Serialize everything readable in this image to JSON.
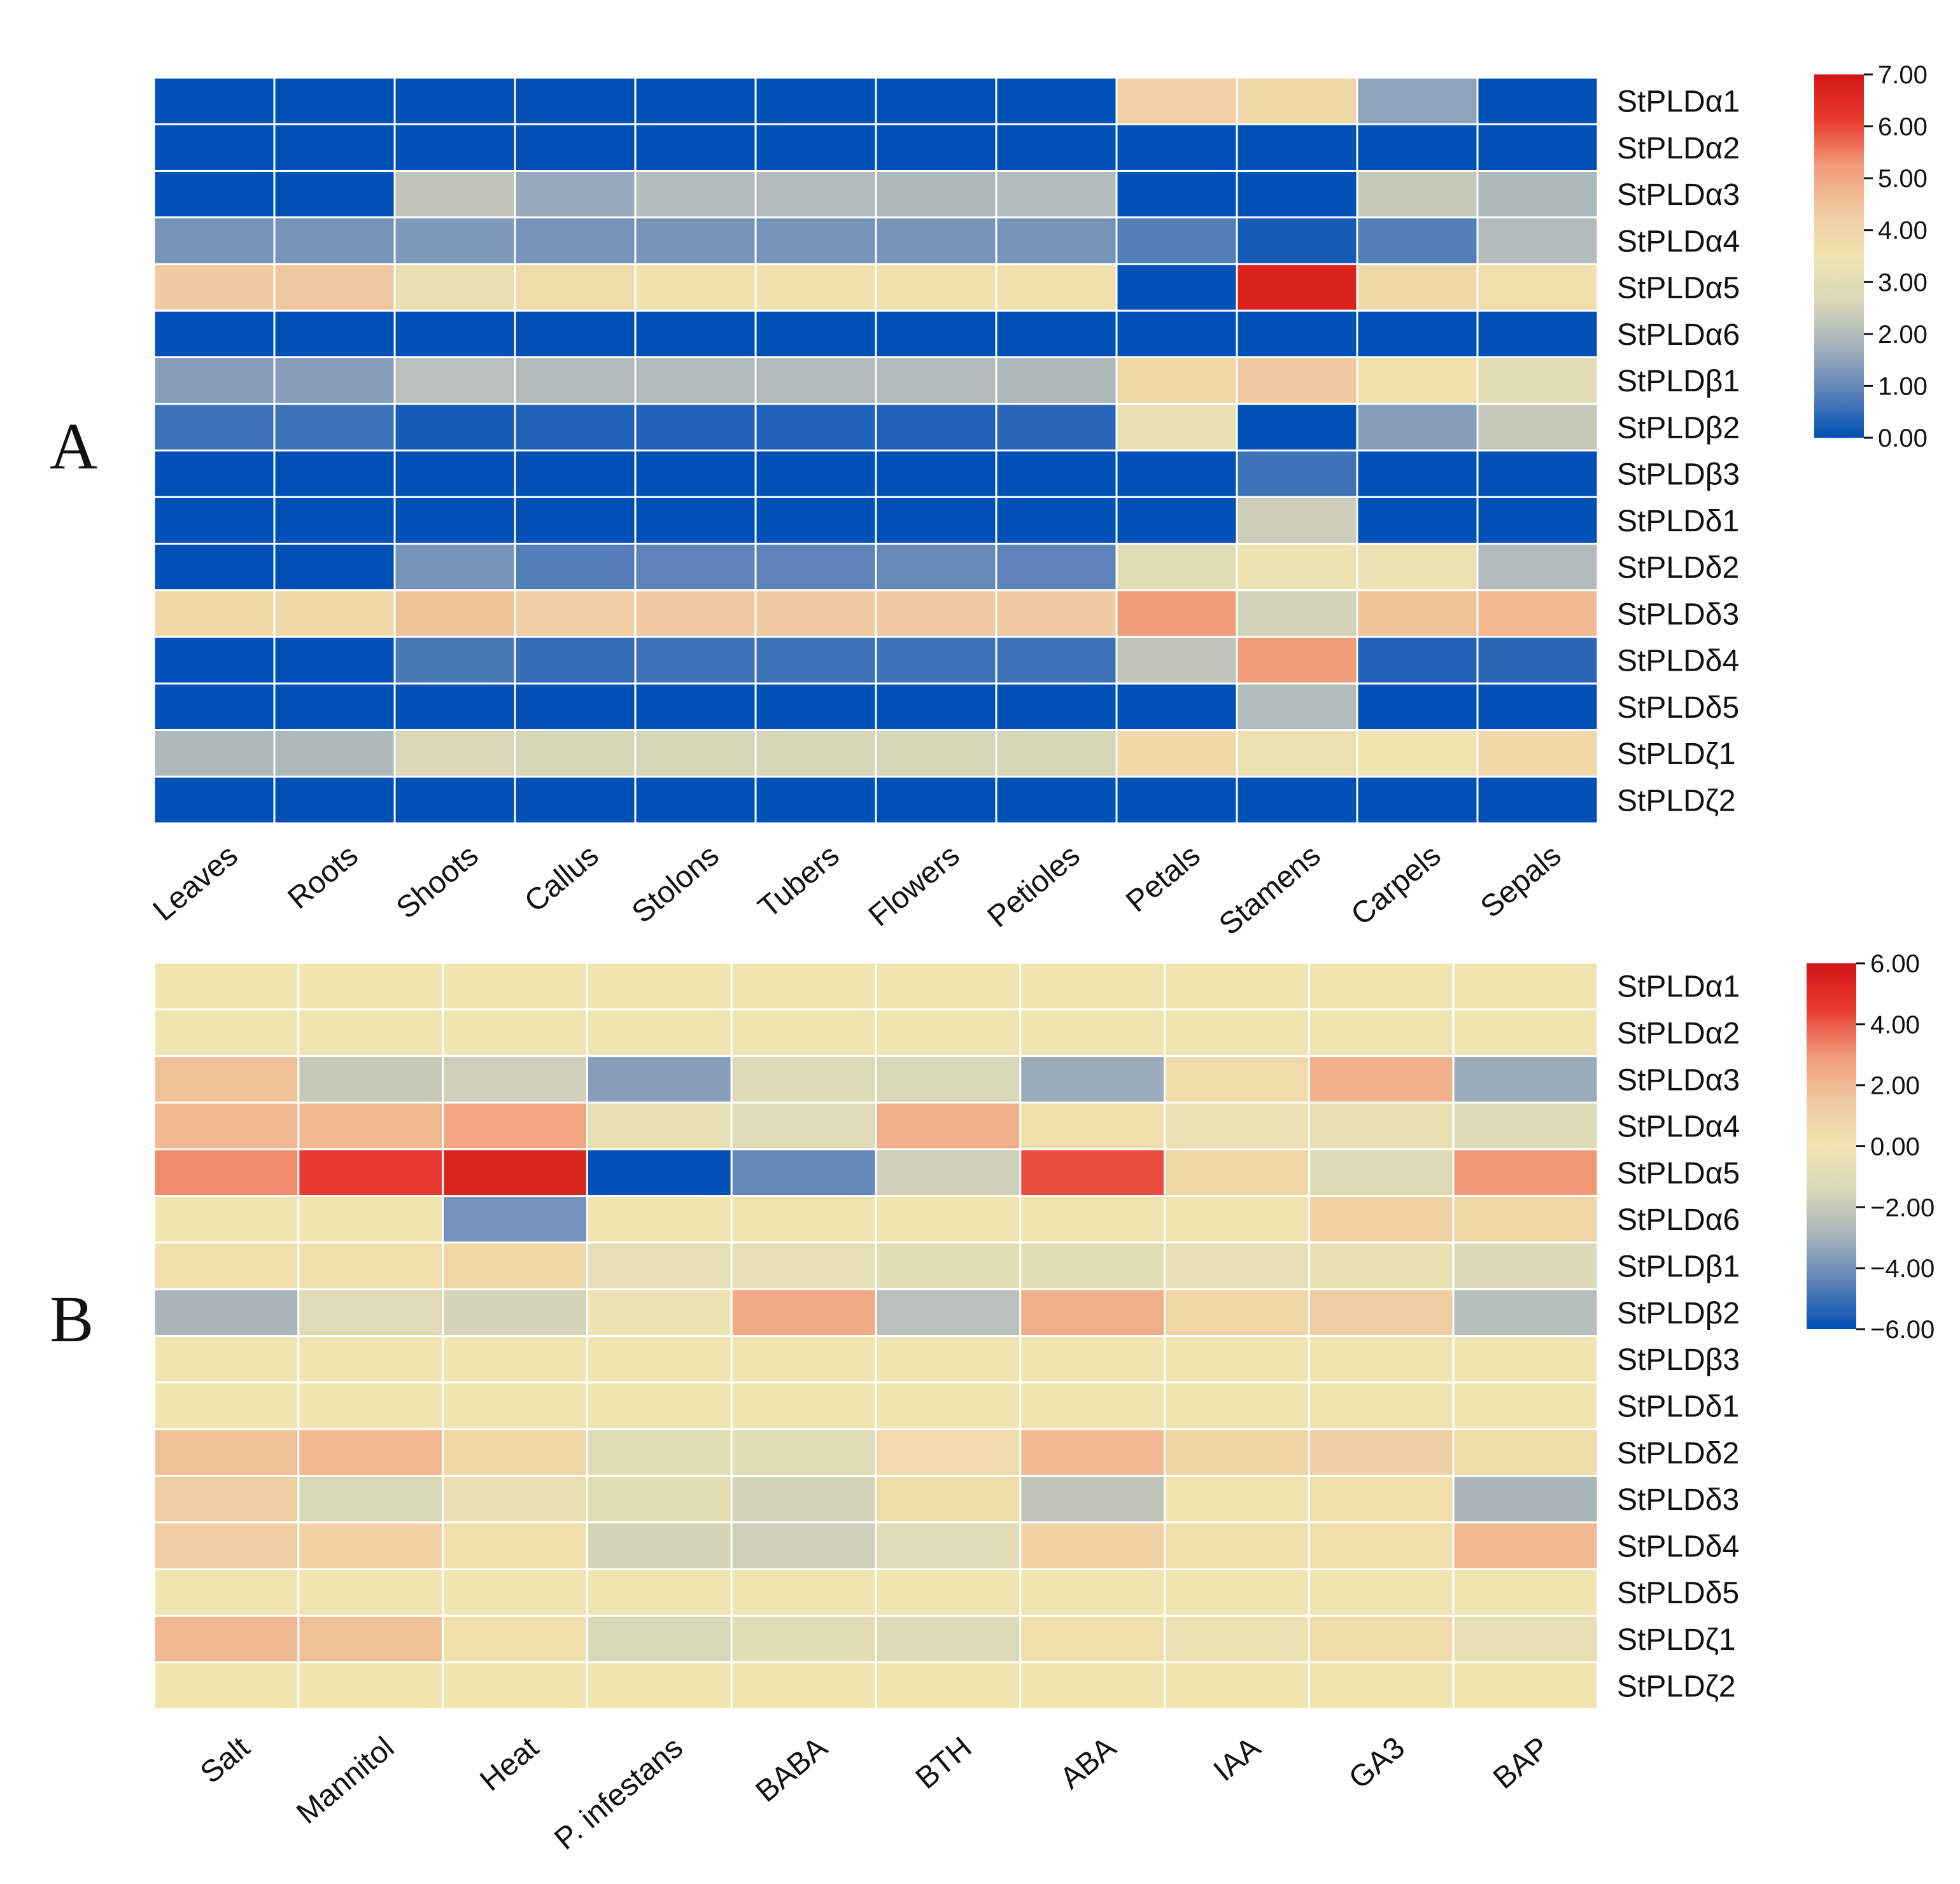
{
  "chart_data": [
    {
      "type": "heatmap",
      "panel_label": "A",
      "title": "",
      "rows": [
        "StPLDα1",
        "StPLDα2",
        "StPLDα3",
        "StPLDα4",
        "StPLDα5",
        "StPLDα6",
        "StPLDβ1",
        "StPLDβ2",
        "StPLDβ3",
        "StPLDδ1",
        "StPLDδ2",
        "StPLDδ3",
        "StPLDδ4",
        "StPLDδ5",
        "StPLDζ1",
        "StPLDζ2"
      ],
      "columns": [
        "Leaves",
        "Roots",
        "Shoots",
        "Callus",
        "Stolons",
        "Tubers",
        "Flowers",
        "Petioles",
        "Petals",
        "Stamens",
        "Carpels",
        "Sepals"
      ],
      "values": [
        [
          0,
          0,
          0,
          0,
          0,
          0,
          0,
          0,
          4.1,
          3.9,
          1.5,
          0
        ],
        [
          0,
          0,
          0,
          0,
          0,
          0,
          0,
          0,
          0,
          0,
          0,
          0
        ],
        [
          0,
          0,
          2.2,
          1.6,
          2.0,
          2.0,
          1.9,
          2.0,
          0,
          0,
          2.3,
          1.9
        ],
        [
          1.2,
          1.2,
          1.3,
          1.2,
          1.2,
          1.2,
          1.2,
          1.2,
          0.8,
          0.2,
          0.8,
          2.0
        ],
        [
          4.3,
          4.4,
          3.2,
          3.8,
          3.6,
          3.6,
          3.6,
          3.6,
          0,
          6.7,
          3.9,
          3.7
        ],
        [
          0,
          0,
          0,
          0,
          0,
          0,
          0,
          0,
          0,
          0,
          0,
          0
        ],
        [
          1.4,
          1.4,
          2.1,
          2.0,
          2.0,
          2.0,
          2.0,
          1.9,
          4.0,
          4.3,
          3.6,
          3.0
        ],
        [
          0.6,
          0.6,
          0.2,
          0.3,
          0.3,
          0.3,
          0.3,
          0.4,
          3.2,
          0,
          1.4,
          2.3
        ],
        [
          0,
          0,
          0,
          0,
          0,
          0,
          0,
          0,
          0,
          0.6,
          0,
          0
        ],
        [
          0,
          0,
          0,
          0,
          0,
          0,
          0,
          0,
          0,
          2.4,
          0,
          0
        ],
        [
          0,
          0,
          1.2,
          0.8,
          0.9,
          0.9,
          1.0,
          0.9,
          3.0,
          3.4,
          3.3,
          2.0
        ],
        [
          3.9,
          3.9,
          4.5,
          4.2,
          4.3,
          4.3,
          4.3,
          4.3,
          5.2,
          2.5,
          4.5,
          4.7
        ],
        [
          0,
          0,
          0.7,
          0.5,
          0.6,
          0.6,
          0.6,
          0.6,
          2.2,
          5.2,
          0.3,
          0.4
        ],
        [
          0,
          0,
          0,
          0,
          0,
          0,
          0,
          0,
          0,
          2.0,
          0,
          0
        ],
        [
          1.9,
          1.9,
          2.7,
          2.6,
          2.6,
          2.6,
          2.6,
          2.6,
          3.9,
          3.3,
          3.5,
          3.9
        ],
        [
          0,
          0,
          0,
          0,
          0,
          0,
          0,
          0,
          0,
          0,
          0,
          0
        ]
      ],
      "colorbar": {
        "vmin": 0.0,
        "vmax": 7.0,
        "ticks": [
          "0.00",
          "1.00",
          "2.00",
          "3.00",
          "4.00",
          "5.00",
          "6.00",
          "7.00"
        ]
      }
    },
    {
      "type": "heatmap",
      "panel_label": "B",
      "title": "",
      "rows": [
        "StPLDα1",
        "StPLDα2",
        "StPLDα3",
        "StPLDα4",
        "StPLDα5",
        "StPLDα6",
        "StPLDβ1",
        "StPLDβ2",
        "StPLDβ3",
        "StPLDδ1",
        "StPLDδ2",
        "StPLDδ3",
        "StPLDδ4",
        "StPLDδ5",
        "StPLDζ1",
        "StPLDζ2"
      ],
      "columns": [
        "Salt",
        "Mannitol",
        "Heat",
        "P. infestans",
        "BABA",
        "BTH",
        "ABA",
        "IAA",
        "GA3",
        "BAP"
      ],
      "values": [
        [
          0,
          0,
          0,
          0,
          0,
          0,
          0,
          0,
          0,
          0
        ],
        [
          0,
          0,
          0,
          0,
          0,
          0,
          0,
          0,
          0,
          0
        ],
        [
          1.8,
          -2.0,
          -1.8,
          -3.6,
          -1.2,
          -1.5,
          -3.2,
          0.5,
          2.3,
          -3.2
        ],
        [
          2.0,
          2.0,
          2.6,
          -0.5,
          -1.0,
          2.3,
          0.3,
          -0.3,
          -0.5,
          -1.2
        ],
        [
          3.2,
          4.5,
          5.4,
          -6.0,
          -4.3,
          -1.8,
          4.2,
          0.8,
          -1.2,
          3.0
        ],
        [
          0,
          0,
          -4.0,
          0,
          0,
          0,
          0,
          0,
          1.0,
          0.8
        ],
        [
          0.3,
          0.3,
          0.8,
          -0.7,
          -0.7,
          -0.8,
          -0.8,
          -0.6,
          -0.5,
          -1.3
        ],
        [
          -2.8,
          -1.0,
          -1.6,
          -0.2,
          2.5,
          -2.4,
          2.4,
          0.8,
          1.2,
          -2.5
        ],
        [
          0,
          0,
          0,
          0,
          0,
          0,
          0,
          0,
          0,
          0
        ],
        [
          0,
          0,
          0,
          0,
          0,
          0,
          0,
          0,
          0,
          0
        ],
        [
          1.8,
          2.0,
          0.8,
          -0.9,
          -0.9,
          0.6,
          2.0,
          0.9,
          1.2,
          0.4
        ],
        [
          1.2,
          -1.5,
          -0.5,
          -0.8,
          -1.6,
          0.5,
          -2.2,
          0.0,
          0.3,
          -2.8
        ],
        [
          1.2,
          1.0,
          0.3,
          -1.6,
          -1.8,
          -1.0,
          1.0,
          0.2,
          0.3,
          2.0
        ],
        [
          0,
          0,
          0,
          0,
          0,
          0,
          0,
          0,
          0,
          0
        ],
        [
          2.0,
          1.8,
          0.3,
          -1.5,
          -0.8,
          -1.2,
          0.3,
          -0.3,
          0.5,
          -0.6
        ],
        [
          0,
          0,
          0,
          0,
          0,
          0,
          0,
          0,
          0,
          0
        ]
      ],
      "colorbar": {
        "vmin": -6.0,
        "vmax": 6.0,
        "ticks": [
          "−6.00",
          "−4.00",
          "−2.00",
          "0.00",
          "2.00",
          "4.00",
          "6.00"
        ]
      }
    }
  ],
  "colors": {
    "stops": [
      "#0050b5",
      "#5b82b8",
      "#a4b1bb",
      "#d8d7b8",
      "#f0e4b0",
      "#f0c9a0",
      "#f29a78",
      "#e83a2e",
      "#d21515"
    ],
    "grid_line": "#ffffff",
    "text": "#111111"
  }
}
